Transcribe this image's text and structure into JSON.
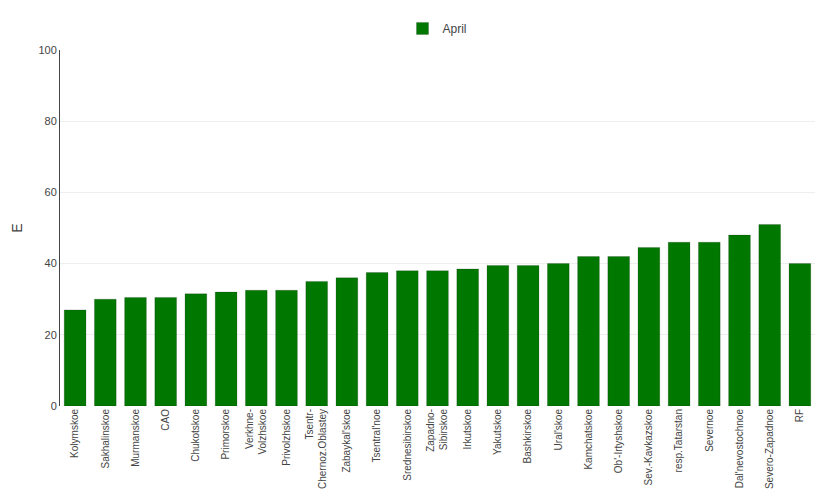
{
  "chart_data": {
    "type": "bar",
    "ylabel": "E",
    "categories": [
      "Kolymskoe",
      "Sakhalinskoe",
      "Murmanskoe",
      "CAO",
      "Chukotskoe",
      "Primorskoe",
      "Verkhnе-\nVolzhskoe",
      "Privolzhskoe",
      "Tsentr-\nChernoz.Oblastey",
      "Zabaykal'skoe",
      "Tsentral'noe",
      "Srednesibirskoe",
      "Zapadno-\nSibirskoe",
      "Irkutskoe",
      "Yakutskoe",
      "Bashkirskoe",
      "Ural'skoe",
      "Kamchatskoe",
      "Ob'-Irtyshskoe",
      "Sev.-Kavkazskoe",
      "resp.Tatarstan",
      "Severnoe",
      "Dal'nevostochnoe",
      "Severo-Zapadnoe",
      "RF"
    ],
    "series": [
      {
        "name": "April",
        "color": "#007800",
        "values": [
          27,
          30,
          30.5,
          30.5,
          31.5,
          32,
          32.5,
          32.5,
          35,
          36,
          37.5,
          38,
          38,
          38.5,
          39.5,
          39.5,
          40,
          42,
          42,
          44.5,
          46,
          46,
          48,
          51,
          40
        ]
      }
    ],
    "ylim": [
      0,
      100
    ],
    "yticks": [
      0,
      20,
      40,
      60,
      80,
      100
    ],
    "grid": true,
    "legend": "top"
  }
}
